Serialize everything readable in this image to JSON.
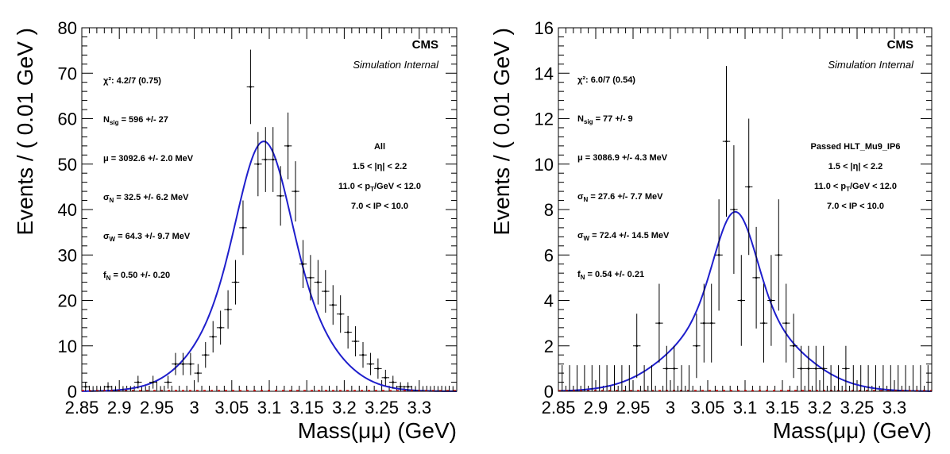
{
  "chart_data": [
    {
      "type": "scatter",
      "xlabel": "Mass(μμ) (GeV)",
      "ylabel": "Events / ( 0.01 GeV )",
      "xlim": [
        2.85,
        3.35
      ],
      "ylim": [
        0,
        80
      ],
      "xticks": [
        "2.85",
        "2.9",
        "2.95",
        "3",
        "3.05",
        "3.1",
        "3.15",
        "3.2",
        "3.25",
        "3.3"
      ],
      "yticks": [
        "0",
        "10",
        "20",
        "30",
        "40",
        "50",
        "60",
        "70",
        "80"
      ],
      "cms_label": "CMS",
      "sim_label": "Simulation Internal",
      "fit_params": [
        {
          "text": "χ²: 4.2/7 (0.75)"
        },
        {
          "text": "N",
          "sub": "sig",
          "rest": " = 596 +/- 27"
        },
        {
          "text": "μ = 3092.6 +/- 2.0 MeV"
        },
        {
          "text": "σ",
          "sub": "N",
          "rest": " = 32.5 +/- 6.2 MeV"
        },
        {
          "text": "σ",
          "sub": "W",
          "rest": " = 64.3 +/- 9.7 MeV"
        },
        {
          "text": "f",
          "sub": "N",
          "rest": " = 0.50 +/- 0.20"
        }
      ],
      "selection": [
        {
          "text": "All"
        },
        {
          "text": "1.5 < |η| < 2.2"
        },
        {
          "text": "11.0 < p",
          "sub": "T",
          "rest": "/GeV < 12.0"
        },
        {
          "text": "7.0 < IP < 10.0"
        }
      ],
      "fit": {
        "mu": 3.0926,
        "sigmaN": 0.0325,
        "sigmaW": 0.0643,
        "fN": 0.5,
        "peak": 55.0,
        "color": "#1f1fcc"
      },
      "background_color": "#cc0000",
      "points": {
        "x": [
          2.855,
          2.865,
          2.875,
          2.885,
          2.895,
          2.905,
          2.915,
          2.925,
          2.935,
          2.945,
          2.955,
          2.965,
          2.975,
          2.985,
          2.995,
          3.005,
          3.015,
          3.025,
          3.035,
          3.045,
          3.055,
          3.065,
          3.075,
          3.085,
          3.095,
          3.105,
          3.115,
          3.125,
          3.135,
          3.145,
          3.155,
          3.165,
          3.175,
          3.185,
          3.195,
          3.205,
          3.215,
          3.225,
          3.235,
          3.245,
          3.255,
          3.265,
          3.275,
          3.285,
          3.295,
          3.305,
          3.315,
          3.325,
          3.335,
          3.345
        ],
        "y": [
          1,
          0,
          0,
          1,
          0,
          0,
          0,
          2,
          0,
          2,
          0,
          2,
          6,
          6,
          6,
          4,
          8,
          12,
          14,
          18,
          24,
          36,
          67,
          50,
          51,
          51,
          43,
          54,
          44,
          28,
          25,
          24,
          22,
          19,
          17,
          13,
          11,
          8,
          6,
          5,
          3,
          2,
          1,
          1,
          0,
          0,
          0,
          0,
          0,
          0
        ]
      }
    },
    {
      "type": "scatter",
      "xlabel": "Mass(μμ) (GeV)",
      "ylabel": "Events / ( 0.01 GeV )",
      "xlim": [
        2.85,
        3.35
      ],
      "ylim": [
        0,
        16
      ],
      "xticks": [
        "2.85",
        "2.9",
        "2.95",
        "3",
        "3.05",
        "3.1",
        "3.15",
        "3.2",
        "3.25",
        "3.3"
      ],
      "yticks": [
        "0",
        "2",
        "4",
        "6",
        "8",
        "10",
        "12",
        "14",
        "16"
      ],
      "cms_label": "CMS",
      "sim_label": "Simulation Internal",
      "fit_params": [
        {
          "text": "χ²: 6.0/7 (0.54)"
        },
        {
          "text": "N",
          "sub": "sig",
          "rest": " = 77 +/- 9"
        },
        {
          "text": "μ = 3086.9 +/- 4.3 MeV"
        },
        {
          "text": "σ",
          "sub": "N",
          "rest": " = 27.6 +/- 7.7 MeV"
        },
        {
          "text": "σ",
          "sub": "W",
          "rest": " = 72.4 +/- 14.5 MeV"
        },
        {
          "text": "f",
          "sub": "N",
          "rest": " = 0.54 +/- 0.21"
        }
      ],
      "selection": [
        {
          "text": "Passed HLT_Mu9_IP6"
        },
        {
          "text": "1.5 < |η| < 2.2"
        },
        {
          "text": "11.0 < p",
          "sub": "T",
          "rest": "/GeV < 12.0"
        },
        {
          "text": "7.0 < IP < 10.0"
        }
      ],
      "fit": {
        "mu": 3.0869,
        "sigmaN": 0.0276,
        "sigmaW": 0.0724,
        "fN": 0.54,
        "peak": 7.9,
        "color": "#1f1fcc"
      },
      "background_color": "#cc0000",
      "points": {
        "x": [
          2.855,
          2.865,
          2.875,
          2.885,
          2.895,
          2.905,
          2.915,
          2.925,
          2.935,
          2.945,
          2.955,
          2.965,
          2.975,
          2.985,
          2.995,
          3.005,
          3.015,
          3.025,
          3.035,
          3.045,
          3.055,
          3.065,
          3.075,
          3.085,
          3.095,
          3.105,
          3.115,
          3.125,
          3.135,
          3.145,
          3.155,
          3.165,
          3.175,
          3.185,
          3.195,
          3.205,
          3.215,
          3.225,
          3.235,
          3.245,
          3.255,
          3.265,
          3.275,
          3.285,
          3.295,
          3.305,
          3.315,
          3.325,
          3.335,
          3.345
        ],
        "y": [
          0,
          0,
          0,
          0,
          0,
          0,
          0,
          0,
          0,
          0,
          2,
          0,
          0,
          3,
          1,
          1,
          0,
          0,
          2,
          3,
          3,
          6,
          11,
          8,
          4,
          9,
          5,
          3,
          4,
          6,
          3,
          2,
          1,
          1,
          1,
          1,
          0,
          0,
          1,
          0,
          0,
          0,
          0,
          0,
          0,
          0,
          0,
          0,
          0,
          0
        ]
      }
    }
  ]
}
